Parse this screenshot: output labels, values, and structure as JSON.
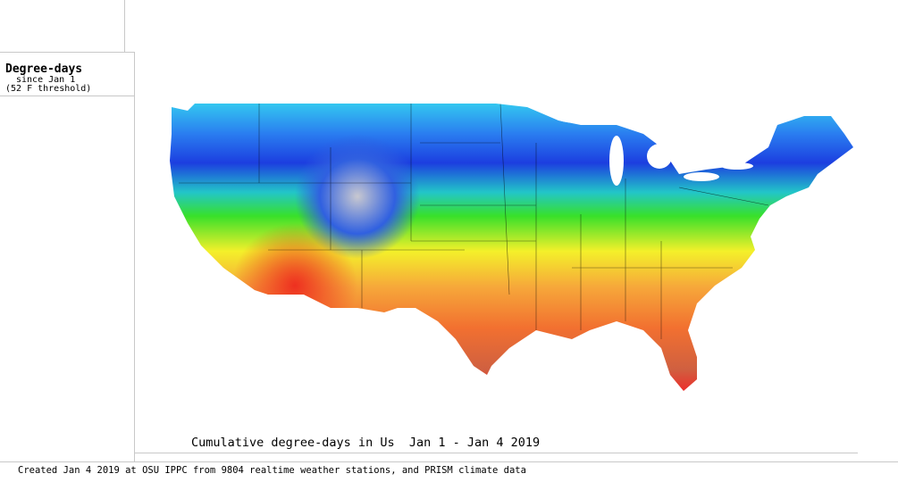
{
  "legend": {
    "title": "Degree-days",
    "subtitle": "since Jan 1",
    "threshold": "(52 F threshold)"
  },
  "caption": "Cumulative degree-days in Us  Jan 1 - Jan 4 2019",
  "footer": "Created Jan 4 2019 at OSU IPPC from 9804 realtime weather stations, and PRISM climate data"
}
